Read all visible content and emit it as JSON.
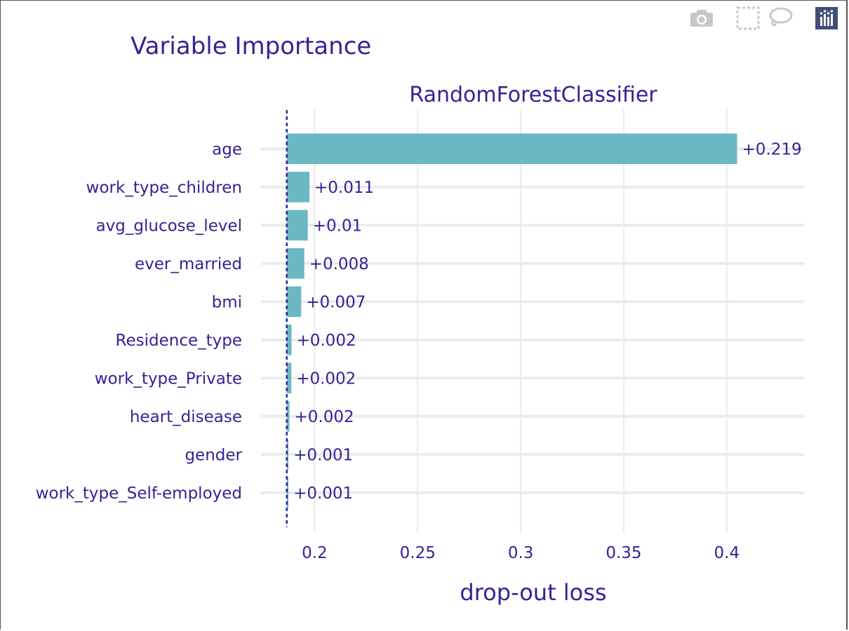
{
  "title": "Variable Importance",
  "modebar": [
    {
      "name": "camera-icon",
      "label": "Download plot as a png"
    },
    {
      "name": "box-select-icon",
      "label": "Box Select"
    },
    {
      "name": "lasso-select-icon",
      "label": "Lasso Select"
    },
    {
      "name": "plotly-logo-icon",
      "label": "Produced with Plotly"
    }
  ],
  "colors": {
    "text": "#2f2596",
    "bar": "#6bb8c3",
    "grid": "#ebebeb",
    "baseline": "#2f2596"
  },
  "chart_data": {
    "type": "bar",
    "orientation": "horizontal",
    "subtitle": "RandomForestClassifier",
    "xlabel": "drop-out loss",
    "ylabel": "",
    "baseline": 0.1865,
    "xlim": [
      0.174,
      0.4375
    ],
    "xticks": [
      0.2,
      0.25,
      0.3,
      0.35,
      0.4
    ],
    "xtick_labels": [
      "0.2",
      "0.25",
      "0.3",
      "0.35",
      "0.4"
    ],
    "categories": [
      "age",
      "work_type_children",
      "avg_glucose_level",
      "ever_married",
      "bmi",
      "Residence_type",
      "work_type_Private",
      "heart_disease",
      "gender",
      "work_type_Self-employed"
    ],
    "values": [
      0.405,
      0.1975,
      0.1967,
      0.195,
      0.1935,
      0.1888,
      0.1887,
      0.1878,
      0.1873,
      0.1873
    ],
    "labels": [
      "+0.219",
      "+0.011",
      "+0.01",
      "+0.008",
      "+0.007",
      "+0.002",
      "+0.002",
      "+0.002",
      "+0.001",
      "+0.001"
    ],
    "grid": true,
    "legend": "none"
  }
}
